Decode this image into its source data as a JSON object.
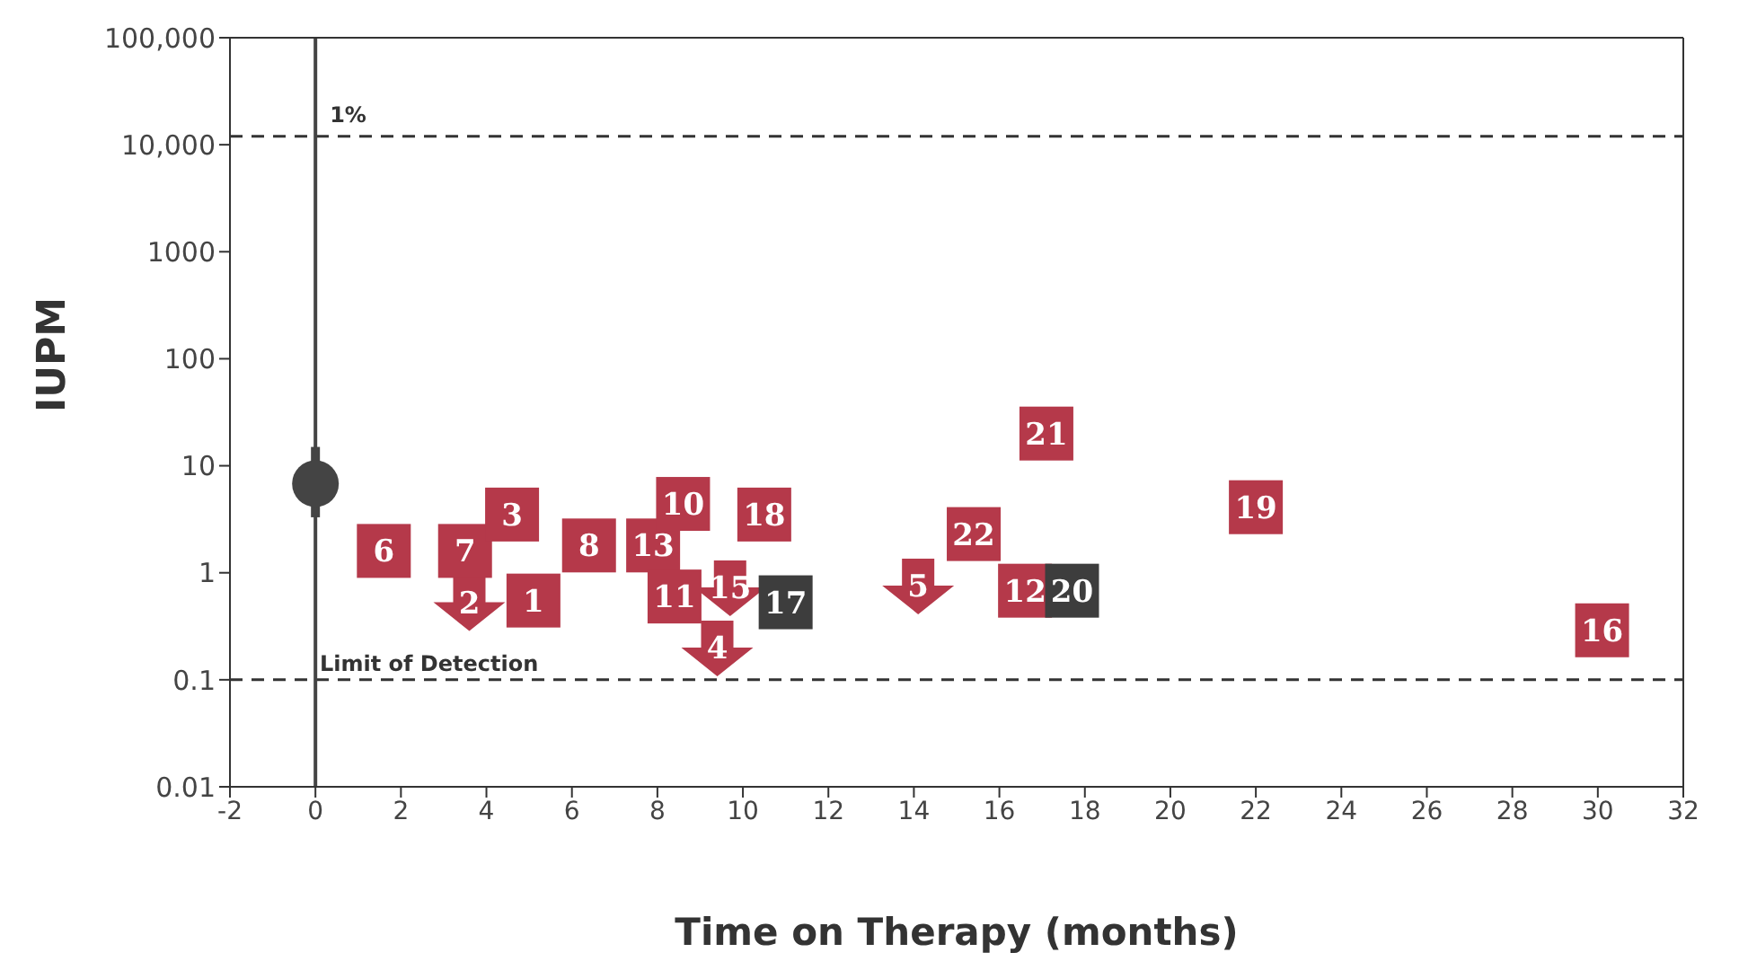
{
  "chart_data": {
    "type": "scatter",
    "xlabel": "Time on Therapy (months)",
    "ylabel": "IUPM",
    "log": "y",
    "grid": false,
    "xlim": [
      -2,
      32
    ],
    "xticks": [
      -2,
      0,
      2,
      4,
      6,
      8,
      10,
      12,
      14,
      16,
      18,
      20,
      22,
      24,
      26,
      28,
      30,
      32
    ],
    "ylim": [
      0.01,
      100000
    ],
    "yticks": [
      0.01,
      0.1,
      1,
      10,
      100,
      1000,
      {
        "value": 10000,
        "label": "10,000"
      },
      {
        "value": 100000,
        "label": "100,000"
      }
    ],
    "ref_lines": [
      {
        "axis": "y",
        "value": 12000,
        "color": "#333333",
        "line_style": "dashed"
      },
      {
        "axis": "y",
        "value": 0.1,
        "label": "Limit of Detection",
        "color": "#333333",
        "line_style": "dashed"
      },
      {
        "axis": "x",
        "value": 0,
        "color": "#444444",
        "line_style": "solid"
      }
    ],
    "series": [
      {
        "color": "#b5394a",
        "marker": "triangle",
        "x": [
          3.6,
          9.7,
          9.4,
          14.1
        ],
        "values": [
          0.53,
          0.73,
          0.2,
          0.76
        ]
      },
      {
        "color": "#b5394a",
        "marker": "square",
        "x": [
          1.6,
          3.5,
          4.6,
          5.1,
          6.4,
          7.9,
          8.6,
          10.5,
          8.4,
          15.4,
          17.1,
          16.6,
          22.0,
          30.1
        ],
        "values": [
          1.6,
          1.6,
          3.5,
          0.55,
          1.8,
          1.8,
          4.4,
          3.5,
          0.6,
          2.3,
          20,
          0.68,
          4.1,
          0.29
        ]
      },
      {
        "color": "#3d3d3d",
        "marker": "square",
        "x": [
          11.0,
          17.7
        ],
        "values": [
          0.53,
          0.68
        ]
      },
      {
        "color": "#444444",
        "marker": "circle",
        "x": [
          0
        ],
        "values": [
          6.8
        ],
        "errors": [
          [
            3.3,
            15
          ]
        ]
      }
    ],
    "annotations": [
      {
        "text": "1%",
        "x": 0,
        "y": 12000
      },
      {
        "text": "2",
        "x": 3.6,
        "y": 0.53
      },
      {
        "text": "15",
        "x": 9.7,
        "y": 0.73
      },
      {
        "text": "4",
        "x": 9.4,
        "y": 0.2
      },
      {
        "text": "5",
        "x": 14.1,
        "y": 0.76
      },
      {
        "text": "6",
        "x": 1.6,
        "y": 1.6
      },
      {
        "text": "7",
        "x": 3.5,
        "y": 1.6
      },
      {
        "text": "3",
        "x": 4.6,
        "y": 3.5
      },
      {
        "text": "1",
        "x": 5.1,
        "y": 0.55
      },
      {
        "text": "8",
        "x": 6.4,
        "y": 1.8
      },
      {
        "text": "13",
        "x": 7.9,
        "y": 1.8
      },
      {
        "text": "10",
        "x": 8.6,
        "y": 4.4
      },
      {
        "text": "18",
        "x": 10.5,
        "y": 3.5
      },
      {
        "text": "11",
        "x": 8.4,
        "y": 0.6
      },
      {
        "text": "22",
        "x": 15.4,
        "y": 2.3
      },
      {
        "text": "21",
        "x": 17.1,
        "y": 20
      },
      {
        "text": "12",
        "x": 16.6,
        "y": 0.68
      },
      {
        "text": "19",
        "x": 22.0,
        "y": 4.1
      },
      {
        "text": "16",
        "x": 30.1,
        "y": 0.29
      },
      {
        "text": "17",
        "x": 11.0,
        "y": 0.53
      },
      {
        "text": "20",
        "x": 17.7,
        "y": 0.68
      }
    ]
  }
}
